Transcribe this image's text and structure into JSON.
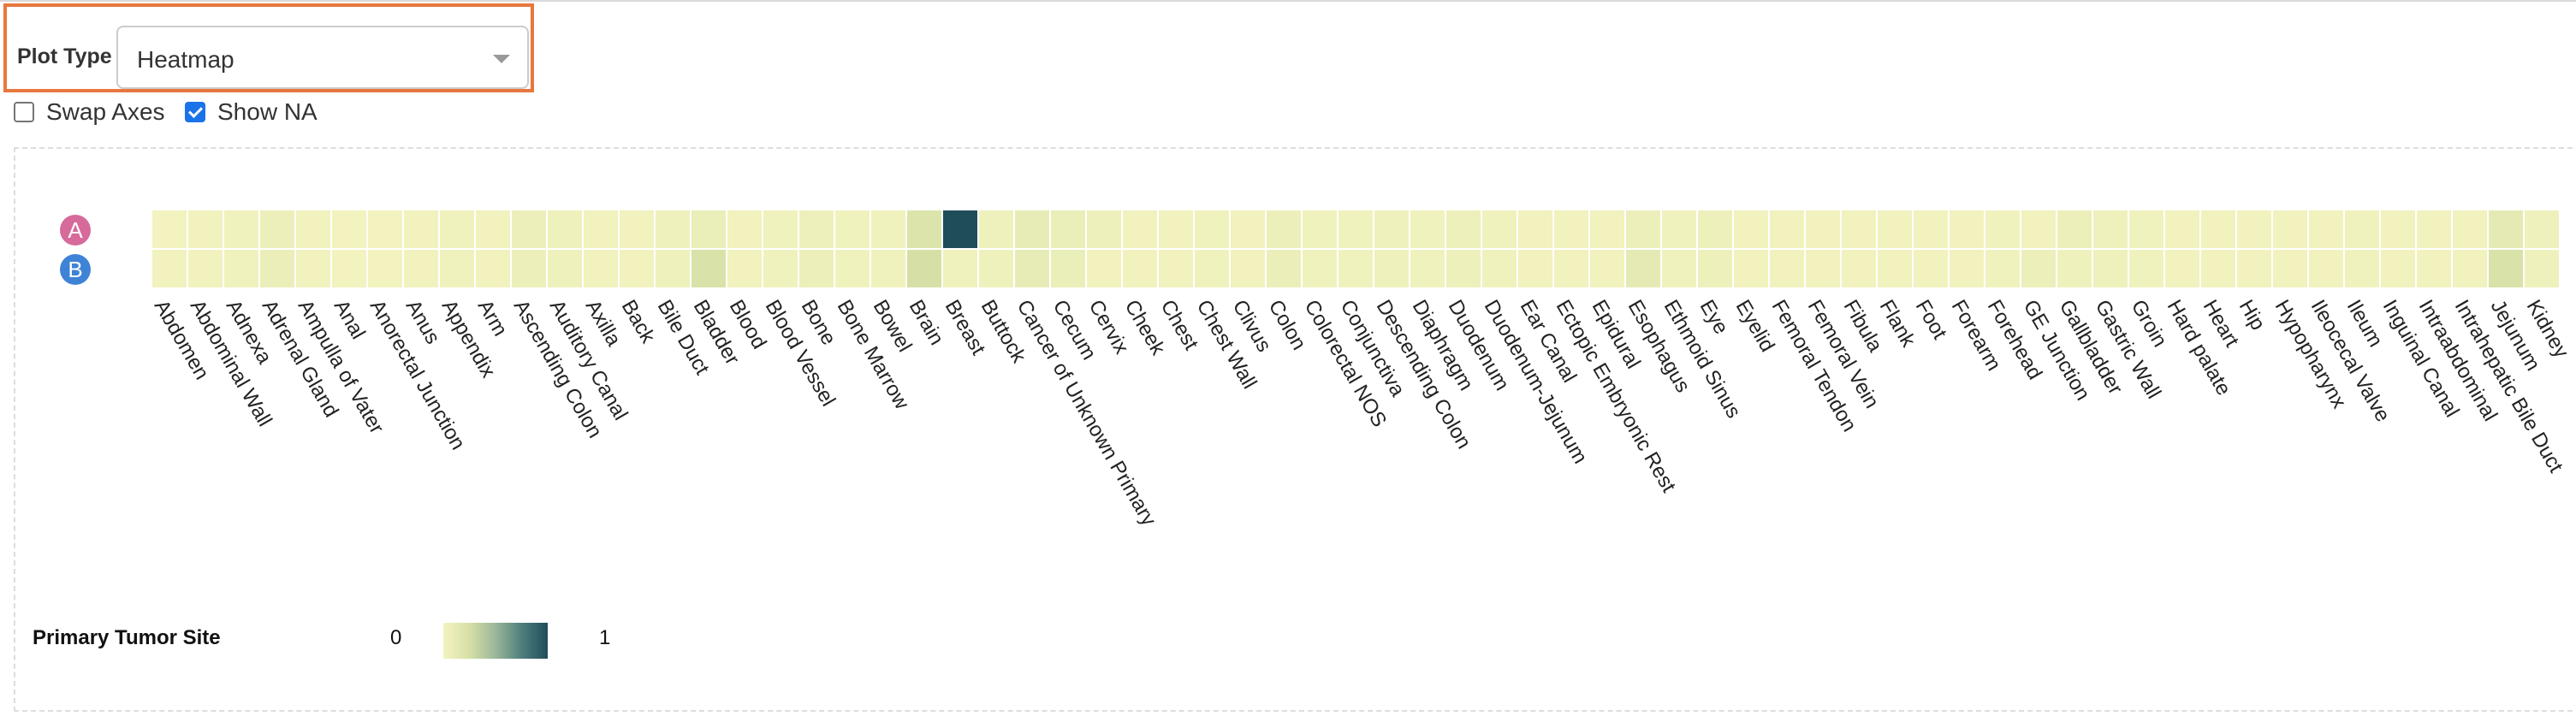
{
  "controls": {
    "plot_type_label": "Plot Type",
    "plot_type_value": "Heatmap",
    "swap_axes_label": "Swap Axes",
    "swap_axes_checked": false,
    "show_na_label": "Show NA",
    "show_na_checked": true
  },
  "rows": [
    {
      "label": "A",
      "color": "#d66a9a"
    },
    {
      "label": "B",
      "color": "#3f83d6"
    }
  ],
  "legend": {
    "title": "Primary Tumor Site",
    "min_label": "0",
    "max_label": "1",
    "color_low": "#f3f4c0",
    "color_high": "#1f4d5a"
  },
  "chart_data": {
    "type": "heatmap",
    "rows": [
      "A",
      "B"
    ],
    "columns": [
      "Abdomen",
      "Abdominal Wall",
      "Adnexa",
      "Adrenal Gland",
      "Ampulla of Vater",
      "Anal",
      "Anorectal Junction",
      "Anus",
      "Appendix",
      "Arm",
      "Ascending Colon",
      "Auditory Canal",
      "Axilla",
      "Back",
      "Bile Duct",
      "Bladder",
      "Blood",
      "Blood Vessel",
      "Bone",
      "Bone Marrow",
      "Bowel",
      "Brain",
      "Breast",
      "Buttock",
      "Cancer of Unknown Primary",
      "Cecum",
      "Cervix",
      "Cheek",
      "Chest",
      "Chest Wall",
      "Clivus",
      "Colon",
      "Colorectal NOS",
      "Conjunctiva",
      "Descending Colon",
      "Diaphragm",
      "Duodenum",
      "Duodenum-Jejunum",
      "Ear Canal",
      "Ectopic Embryonic Rest",
      "Epidural",
      "Esophagus",
      "Ethmoid Sinus",
      "Eye",
      "Eyelid",
      "Femoral Tendon",
      "Femoral Vein",
      "Fibula",
      "Flank",
      "Foot",
      "Forearm",
      "Forehead",
      "GE Junction",
      "Gallbladder",
      "Gastric Wall",
      "Groin",
      "Hard palate",
      "Heart",
      "Hip",
      "Hypopharynx",
      "Ileocecal Valve",
      "Ileum",
      "Inguinal Canal",
      "Intraabdominal",
      "Intrahepatic Bile Duct",
      "Jejunum",
      "Kidney"
    ],
    "values": [
      [
        0.01,
        0.02,
        0.03,
        0.06,
        0.02,
        0.01,
        0.01,
        0.02,
        0.03,
        0.02,
        0.06,
        0.04,
        0.02,
        0.02,
        0.04,
        0.08,
        0.02,
        0.03,
        0.05,
        0.03,
        0.03,
        0.2,
        1.0,
        0.04,
        0.1,
        0.08,
        0.05,
        0.02,
        0.02,
        0.03,
        0.02,
        0.06,
        0.03,
        0.03,
        0.04,
        0.03,
        0.05,
        0.03,
        0.02,
        0.02,
        0.02,
        0.06,
        0.03,
        0.05,
        0.02,
        0.02,
        0.02,
        0.02,
        0.02,
        0.02,
        0.02,
        0.03,
        0.02,
        0.06,
        0.04,
        0.03,
        0.02,
        0.02,
        0.02,
        0.02,
        0.02,
        0.03,
        0.02,
        0.02,
        0.02,
        0.12,
        0.04
      ],
      [
        0.02,
        0.02,
        0.03,
        0.07,
        0.02,
        0.01,
        0.01,
        0.02,
        0.03,
        0.02,
        0.06,
        0.04,
        0.02,
        0.02,
        0.04,
        0.22,
        0.02,
        0.03,
        0.06,
        0.03,
        0.03,
        0.25,
        0.03,
        0.04,
        0.1,
        0.08,
        0.02,
        0.02,
        0.02,
        0.03,
        0.02,
        0.07,
        0.03,
        0.03,
        0.04,
        0.03,
        0.05,
        0.03,
        0.02,
        0.02,
        0.02,
        0.12,
        0.03,
        0.05,
        0.02,
        0.02,
        0.02,
        0.02,
        0.02,
        0.02,
        0.02,
        0.03,
        0.06,
        0.04,
        0.04,
        0.03,
        0.02,
        0.02,
        0.02,
        0.02,
        0.02,
        0.03,
        0.02,
        0.02,
        0.02,
        0.22,
        0.04
      ]
    ],
    "value_range": [
      0,
      1
    ]
  }
}
